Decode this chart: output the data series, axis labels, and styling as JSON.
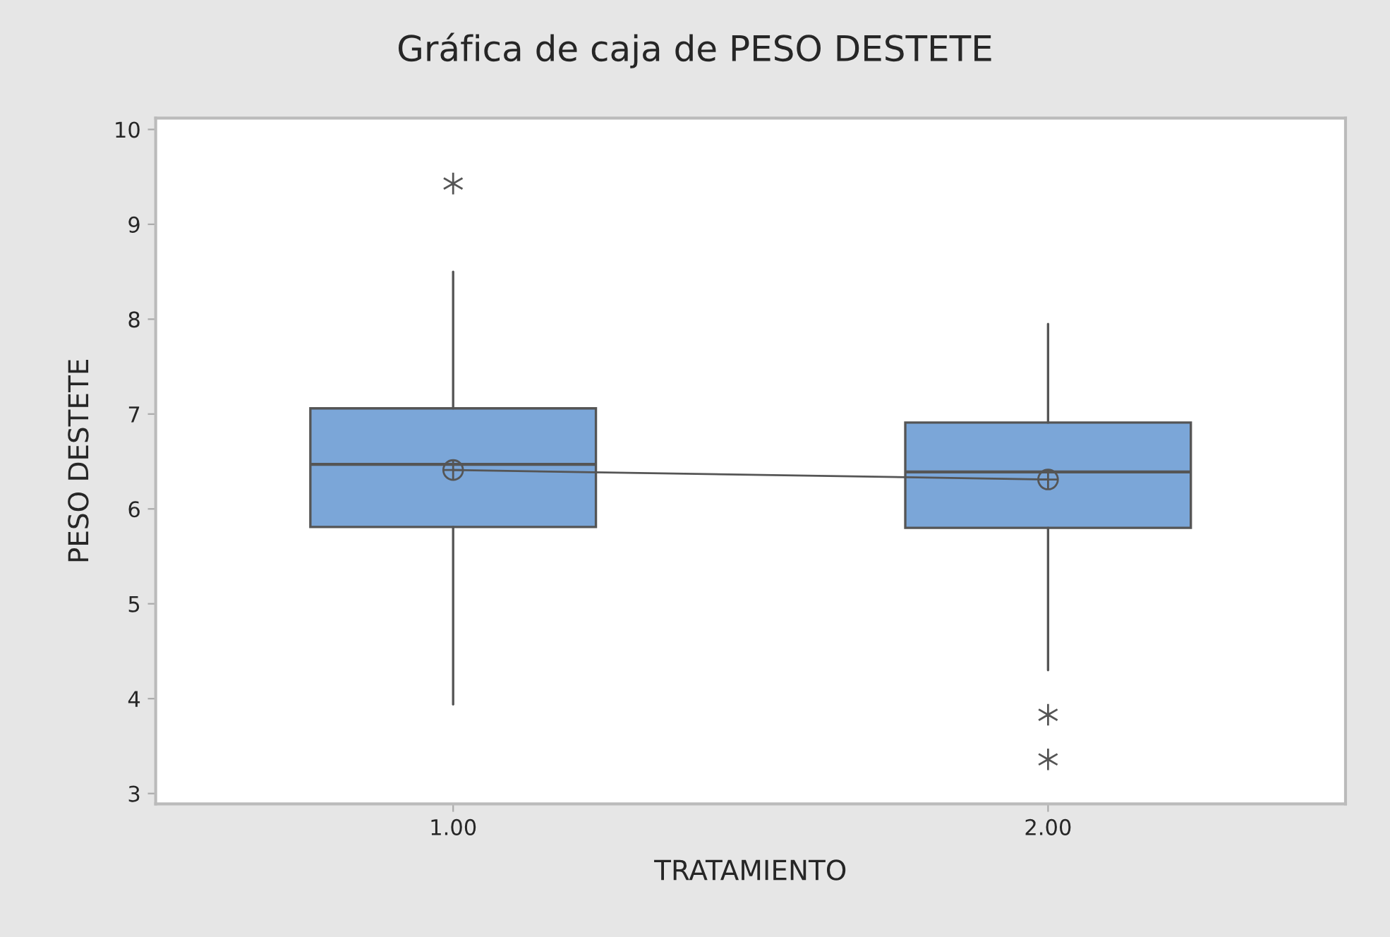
{
  "chart_data": {
    "type": "box",
    "title": "Gráfica de caja de PESO DESTETE",
    "xlabel": "TRATAMIENTO",
    "ylabel": "PESO DESTETE",
    "categories": [
      "1.00",
      "2.00"
    ],
    "color": "#7ba6d8",
    "boxes": [
      {
        "low": 3.94,
        "q1": 5.81,
        "median": 6.47,
        "q3": 7.06,
        "high": 8.5,
        "mean": 6.41,
        "outliers": [
          9.43
        ]
      },
      {
        "low": 4.3,
        "q1": 5.8,
        "median": 6.39,
        "q3": 6.91,
        "high": 7.95,
        "mean": 6.31,
        "outliers": [
          3.83,
          3.36
        ]
      }
    ],
    "series": [
      {
        "type": "line",
        "color": "#555555",
        "values": [
          6.41,
          6.31
        ]
      }
    ],
    "ylim": [
      2.89,
      10.12
    ],
    "yticks": [
      3,
      4,
      5,
      6,
      7,
      8,
      9,
      10
    ],
    "grid": false
  }
}
